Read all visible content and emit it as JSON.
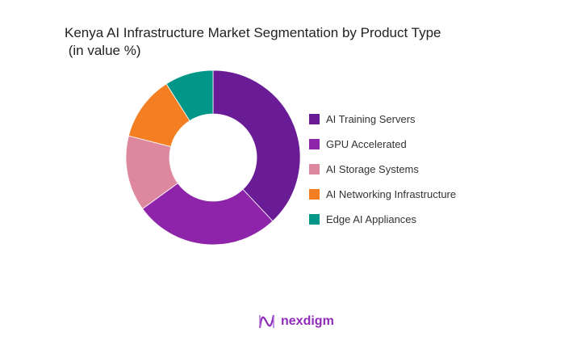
{
  "chart_data": {
    "type": "pie",
    "donut": true,
    "title": "Kenya AI Infrastructure Market Segmentation by Product Type\n (in value %)",
    "legend_position": "right",
    "categories": [
      "AI Training Servers",
      "GPU Accelerated",
      "AI Storage Systems",
      "AI Networking Infrastructure",
      "Edge AI Appliances"
    ],
    "values": [
      38,
      27,
      14,
      12,
      9
    ],
    "colors": [
      "#6a1b96",
      "#8e24aa",
      "#de889f",
      "#f47f22",
      "#009688"
    ]
  },
  "logo": {
    "text": "nexdigm"
  }
}
